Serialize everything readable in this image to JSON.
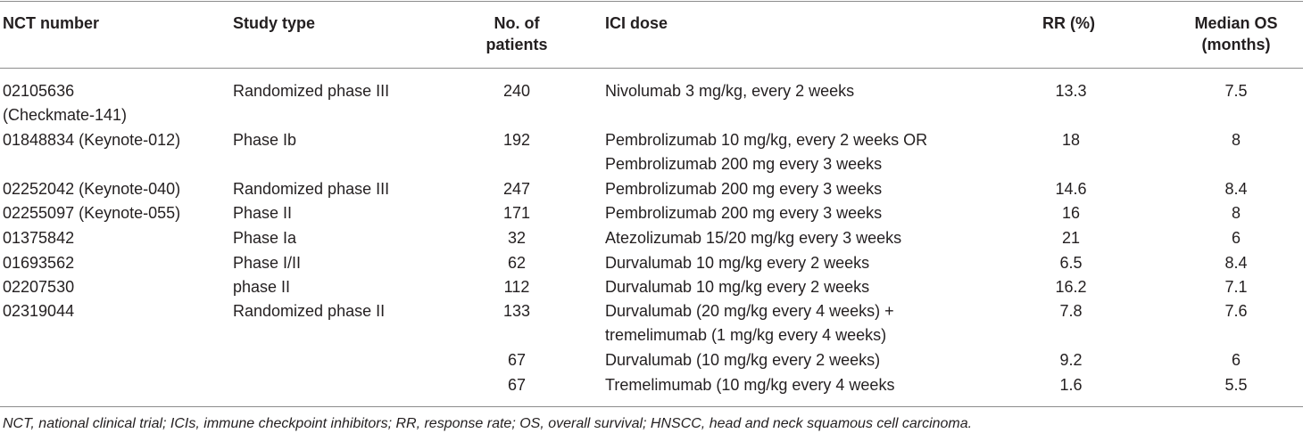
{
  "headers": {
    "nct": "NCT number",
    "study_type": "Study type",
    "patients_line1": "No. of",
    "patients_line2": "patients",
    "ici_dose": "ICI dose",
    "rr": "RR (%)",
    "os_line1": "Median OS",
    "os_line2": "(months)"
  },
  "rows": [
    {
      "nct": "02105636",
      "nct2": "(Checkmate-141)",
      "study": "Randomized phase III",
      "n": "240",
      "dose": "Nivolumab 3 mg/kg, every 2 weeks",
      "rr": "13.3",
      "os": "7.5"
    },
    {
      "nct": "01848834 (Keynote-012)",
      "study": "Phase Ib",
      "n": "192",
      "dose": "Pembrolizumab 10 mg/kg, every 2 weeks OR",
      "dose2": "Pembrolizumab 200 mg every 3 weeks",
      "rr": "18",
      "os": "8"
    },
    {
      "nct": "02252042 (Keynote-040)",
      "study": "Randomized phase III",
      "n": "247",
      "dose": "Pembrolizumab 200 mg every 3 weeks",
      "rr": "14.6",
      "os": "8.4"
    },
    {
      "nct": "02255097 (Keynote-055)",
      "study": "Phase II",
      "n": "171",
      "dose": "Pembrolizumab 200 mg every 3 weeks",
      "rr": "16",
      "os": "8"
    },
    {
      "nct": "01375842",
      "study": "Phase Ia",
      "n": "32",
      "dose": "Atezolizumab 15/20 mg/kg every 3 weeks",
      "rr": "21",
      "os": "6"
    },
    {
      "nct": "01693562",
      "study": "Phase I/II",
      "n": "62",
      "dose": "Durvalumab 10 mg/kg every 2 weeks",
      "rr": "6.5",
      "os": "8.4"
    },
    {
      "nct": "02207530",
      "study": "phase II",
      "n": "112",
      "dose": "Durvalumab 10 mg/kg every 2 weeks",
      "rr": "16.2",
      "os": "7.1"
    },
    {
      "nct": "02319044",
      "study": "Randomized phase II",
      "n": "133",
      "dose": "Durvalumab (20 mg/kg every 4 weeks) +",
      "dose2": "tremelimumab (1 mg/kg every 4 weeks)",
      "rr": "7.8",
      "os": "7.6"
    },
    {
      "nct": "",
      "study": "",
      "n": "67",
      "dose": "Durvalumab (10 mg/kg every 2 weeks)",
      "rr": "9.2",
      "os": "6"
    },
    {
      "nct": "",
      "study": "",
      "n": "67",
      "dose": "Tremelimumab (10 mg/kg every 4 weeks",
      "rr": "1.6",
      "os": "5.5"
    }
  ],
  "footnote": "NCT, national clinical trial; ICIs, immune checkpoint inhibitors; RR, response rate; OS, overall survival; HNSCC, head and neck squamous cell carcinoma."
}
